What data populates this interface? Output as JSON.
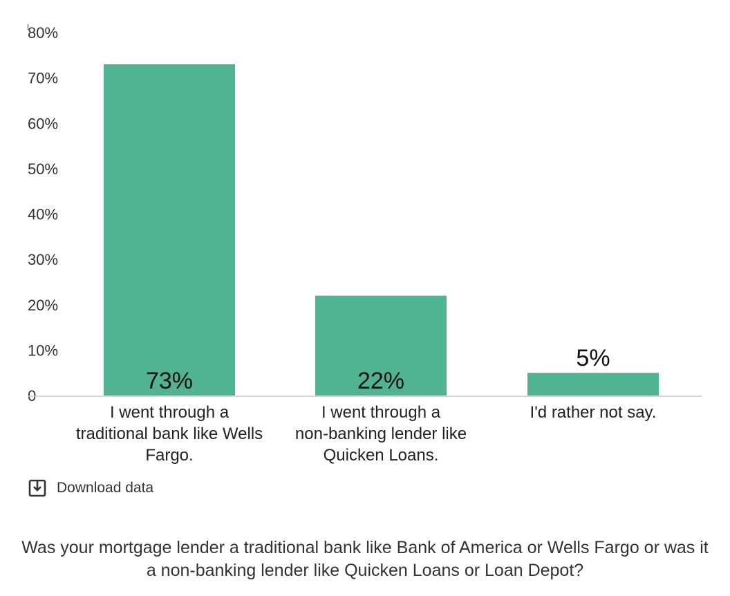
{
  "chart_data": {
    "type": "bar",
    "categories": [
      "I went through a traditional bank like Wells Fargo.",
      "I went through a non-banking lender like Quicken Loans.",
      "I'd rather not say."
    ],
    "category_lines": [
      [
        "I went through a",
        "traditional bank like Wells",
        "Fargo."
      ],
      [
        "I went through a",
        "non-banking lender like",
        "Quicken Loans."
      ],
      [
        "I'd rather not say."
      ]
    ],
    "values": [
      73,
      22,
      5
    ],
    "data_labels": [
      "73%",
      "22%",
      "5%"
    ],
    "ylim": [
      0,
      80
    ],
    "yticks": [
      0,
      10,
      20,
      30,
      40,
      50,
      60,
      70,
      80
    ],
    "ytick_labels": [
      "0",
      "10%",
      "20%",
      "30%",
      "40%",
      "50%",
      "60%",
      "70%",
      "80%"
    ],
    "bar_color": "#52b394",
    "axis_color": "#cccccc",
    "grid": false,
    "title": "Was your mortgage lender a traditional bank like Bank of America or Wells Fargo or was it a non-banking lender like Quicken Loans or Loan Depot?"
  },
  "download": {
    "label": "Download data",
    "icon": "download-icon"
  }
}
